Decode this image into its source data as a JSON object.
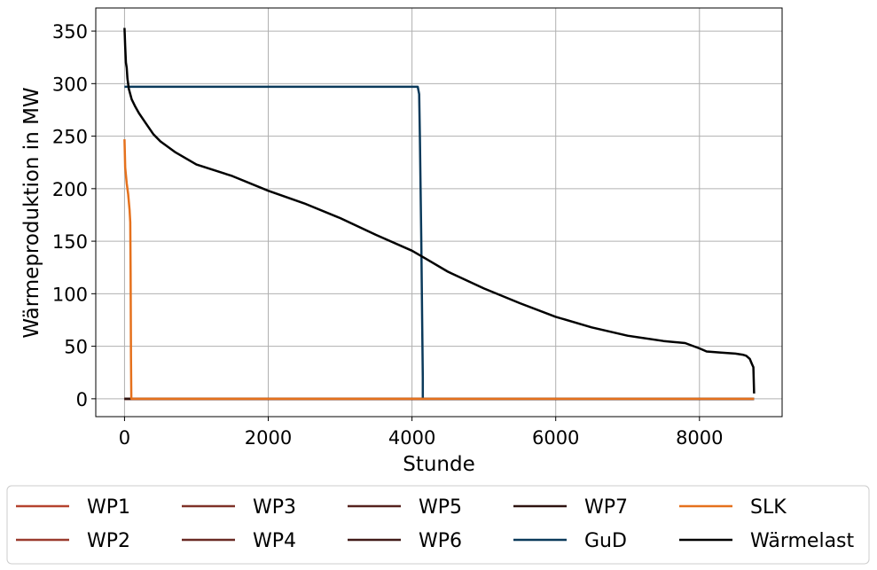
{
  "chart_data": {
    "type": "line",
    "xlabel": "Stunde",
    "ylabel": "Wärmeproduktion in MW",
    "xlim": [
      -400,
      9150
    ],
    "ylim": [
      -17,
      372
    ],
    "x_ticks": [
      0,
      2000,
      4000,
      6000,
      8000
    ],
    "x_tick_labels": [
      "0",
      "2000",
      "4000",
      "6000",
      "8000"
    ],
    "y_ticks": [
      0,
      50,
      100,
      150,
      200,
      250,
      300,
      350
    ],
    "y_tick_labels": [
      "0",
      "50",
      "100",
      "150",
      "200",
      "250",
      "300",
      "350"
    ],
    "grid": true,
    "legend_placement": "below",
    "legend_columns": 5,
    "series": [
      {
        "name": "WP1",
        "color": "#b5432f",
        "x": [
          0,
          8760
        ],
        "y": [
          0,
          0
        ]
      },
      {
        "name": "WP2",
        "color": "#9a3b2e",
        "x": [
          0,
          8760
        ],
        "y": [
          0,
          0
        ]
      },
      {
        "name": "WP3",
        "color": "#7f3228",
        "x": [
          0,
          8760
        ],
        "y": [
          0,
          0
        ]
      },
      {
        "name": "WP4",
        "color": "#6a2a24",
        "x": [
          0,
          8760
        ],
        "y": [
          0,
          0
        ]
      },
      {
        "name": "WP5",
        "color": "#55221e",
        "x": [
          0,
          8760
        ],
        "y": [
          0,
          0
        ]
      },
      {
        "name": "WP6",
        "color": "#411a18",
        "x": [
          0,
          8760
        ],
        "y": [
          0,
          0
        ]
      },
      {
        "name": "WP7",
        "color": "#2e1310",
        "x": [
          0,
          8760
        ],
        "y": [
          0,
          0
        ]
      },
      {
        "name": "GuD",
        "color": "#0b3a5b",
        "x": [
          0,
          4080,
          4100,
          4110,
          4120,
          4130,
          4140,
          4150,
          4150,
          8760
        ],
        "y": [
          297,
          297,
          290,
          250,
          200,
          150,
          80,
          20,
          0,
          0
        ]
      },
      {
        "name": "SLK",
        "color": "#e5711d",
        "x": [
          0,
          10,
          30,
          50,
          70,
          80,
          85,
          90,
          95,
          8760
        ],
        "y": [
          247,
          220,
          205,
          195,
          180,
          168,
          120,
          40,
          0,
          0
        ]
      },
      {
        "name": "Wärmelast",
        "color": "#000000",
        "x": [
          0,
          10,
          20,
          30,
          40,
          60,
          80,
          100,
          150,
          200,
          300,
          400,
          500,
          700,
          1000,
          1500,
          2000,
          2500,
          3000,
          3500,
          4000,
          4200,
          4500,
          5000,
          5500,
          6000,
          6500,
          7000,
          7500,
          7800,
          8000,
          8100,
          8300,
          8500,
          8600,
          8650,
          8700,
          8730,
          8750,
          8760
        ],
        "y": [
          353,
          335,
          320,
          315,
          305,
          295,
          290,
          285,
          278,
          272,
          262,
          252,
          245,
          235,
          223,
          212,
          198,
          186,
          172,
          156,
          141,
          133,
          121,
          105,
          91,
          78,
          68,
          60,
          55,
          53,
          48,
          45,
          44,
          43,
          42,
          41,
          38,
          33,
          30,
          5
        ]
      }
    ]
  }
}
